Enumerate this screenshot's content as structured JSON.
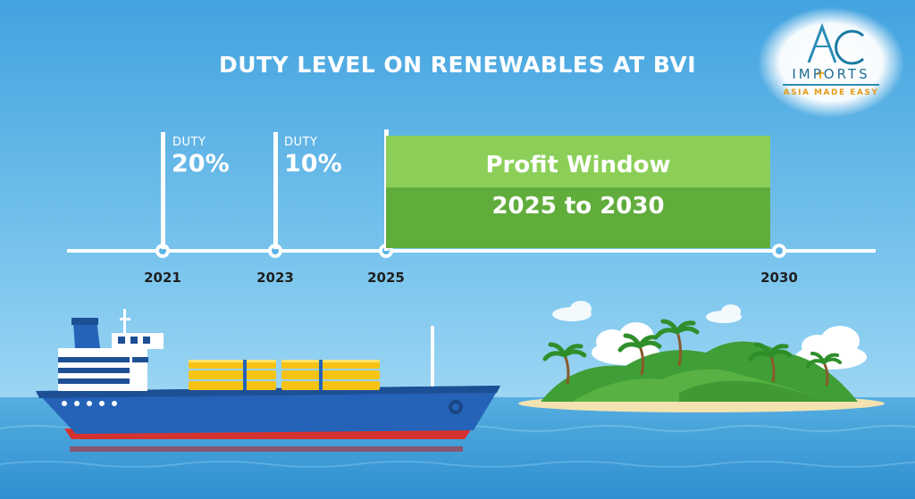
{
  "title": "DUTY LEVEL ON RENEWABLES AT BVI",
  "logo": {
    "mark": "AC",
    "name": "IMPORTS",
    "tagline": "ASIA MADE EASY"
  },
  "timeline": {
    "milestones": [
      {
        "year": "2021",
        "duty_label": "DUTY",
        "duty_value": "20%"
      },
      {
        "year": "2023",
        "duty_label": "DUTY",
        "duty_value": "10%"
      },
      {
        "year": "2025"
      },
      {
        "year": "2030"
      }
    ],
    "profit_window": {
      "line1": "Profit Window",
      "line2": "2025 to 2030"
    }
  },
  "colors": {
    "sky_top": "#4aa9e2",
    "sky_bottom": "#a8dcf5",
    "sea": "#3f9fd9",
    "profit_light": "#8ccf58",
    "profit_dark": "#61ad3c",
    "ship_hull": "#2563b8",
    "ship_keel": "#d5322f",
    "containers": "#f6c315",
    "island_green": "#3f9e35",
    "sand": "#f4e2b1"
  },
  "icons": [
    "cargo-ship-icon",
    "island-icon",
    "palm-tree-icon",
    "cloud-icon",
    "ac-imports-logo"
  ]
}
